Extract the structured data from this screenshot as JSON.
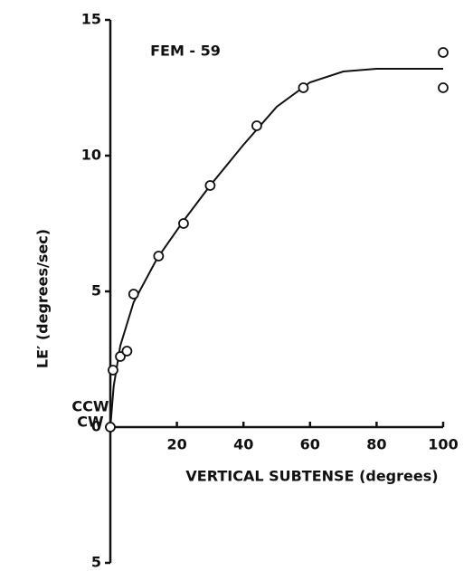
{
  "chart_data": {
    "type": "scatter",
    "title": "FEM - 59",
    "x_label": "VERTICAL SUBTENSE (degrees)",
    "y_label": "LE′ (degrees/sec)",
    "annotations": [
      "CCW",
      "CW"
    ],
    "xlim": [
      0,
      100
    ],
    "ylim": [
      -5,
      15
    ],
    "xticks": [
      20,
      40,
      60,
      80,
      100
    ],
    "yticks": [
      {
        "value": -5,
        "label": "5"
      },
      0,
      5,
      10,
      15
    ],
    "color": "#111111",
    "x": [
      0,
      0.8,
      3,
      5,
      7,
      14.5,
      22,
      30,
      44,
      58,
      100,
      100
    ],
    "values": [
      0,
      2.1,
      2.6,
      2.8,
      4.9,
      6.3,
      7.5,
      8.9,
      11.1,
      12.5,
      13.8,
      12.5
    ],
    "fit": {
      "x": [
        0,
        1,
        3,
        7,
        14,
        22,
        30,
        40,
        50,
        60,
        70,
        80,
        100
      ],
      "values": [
        0,
        1.5,
        3,
        4.6,
        6.2,
        7.6,
        8.9,
        10.4,
        11.8,
        12.7,
        13.1,
        13.2,
        13.2
      ]
    }
  }
}
